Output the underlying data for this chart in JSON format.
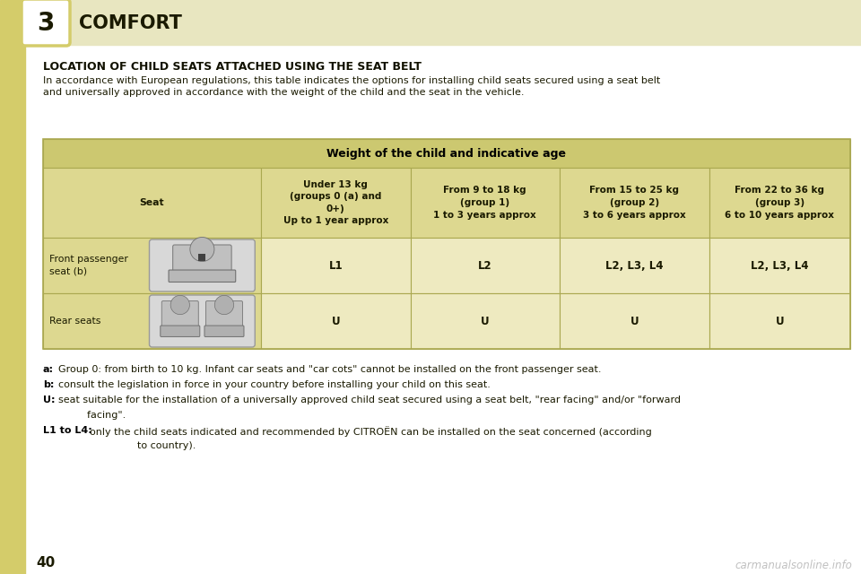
{
  "page_bg": "#ffffff",
  "header_bg": "#e8e6c0",
  "left_bar_color": "#d4cc6a",
  "chapter_num": "3",
  "chapter_title": "COMFORT",
  "section_title": "LOCATION OF CHILD SEATS ATTACHED USING THE SEAT BELT",
  "intro_line1": "In accordance with European regulations, this table indicates the options for installing child seats secured using a seat belt",
  "intro_line2": "and universally approved in accordance with the weight of the child and the seat in the vehicle.",
  "table_header_bg": "#ccc870",
  "table_header_text": "Weight of the child and indicative age",
  "table_header_text_color": "#000000",
  "table_col_header_bg": "#ddd890",
  "table_data_bg": "#eeeac0",
  "table_border_color": "#aaa850",
  "col_headers": [
    "Seat",
    "Under 13 kg\n(groups 0 (a) and\n0+)\nUp to 1 year approx",
    "From 9 to 18 kg\n(group 1)\n1 to 3 years approx",
    "From 15 to 25 kg\n(group 2)\n3 to 6 years approx",
    "From 22 to 36 kg\n(group 3)\n6 to 10 years approx"
  ],
  "col_header_bold": [
    false,
    true,
    true,
    true,
    true
  ],
  "row1_label": "Front passenger\nseat (b)",
  "row1_bold_char": "b",
  "row1_values": [
    "L1",
    "L2",
    "L2, L3, L4",
    "L2, L3, L4"
  ],
  "row2_label": "Rear seats",
  "row2_values": [
    "U",
    "U",
    "U",
    "U"
  ],
  "fn_a_bold": "a:",
  "fn_a_rest": "  Group 0: from birth to 10 kg. Infant car seats and \"car cots\" cannot be installed on the front passenger seat.",
  "fn_b_bold": "b:",
  "fn_b_rest": "  consult the legislation in force in your country before installing your child on this seat.",
  "fn_u_bold": "U:",
  "fn_u_rest": "  seat suitable for the installation of a universally approved child seat secured using a seat belt, \"rear facing\" and/or \"forward",
  "fn_u_rest2": "        facing\".",
  "fn_l_bold": "L1 to L4:",
  "fn_l_rest": "  only the child seats indicated and recommended by CITROËN can be installed on the seat concerned (according",
  "fn_l_rest2": "        to country).",
  "page_num": "40",
  "watermark": "carmanualsonline.info",
  "title_color": "#1a1a00",
  "text_color": "#1a1a00",
  "bold_color": "#111100",
  "header_title_color": "#1a1a00"
}
